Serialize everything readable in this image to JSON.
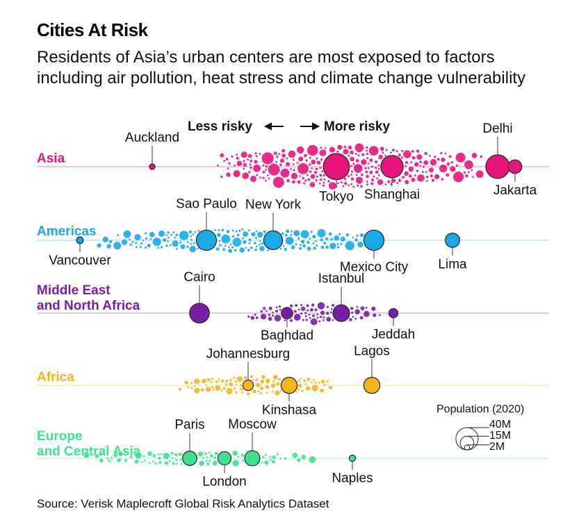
{
  "title": "Cities At Risk",
  "subtitle": "Residents of Asia’s urban centers are most exposed to factors including air pollution, heat stress and climate change vulnerability",
  "source": "Source: Verisk Maplecroft Global Risk Analytics Dataset",
  "chart_data": {
    "type": "scatter",
    "variant": "beeswarm",
    "x_direction_labels": {
      "left": "Less risky",
      "right": "More risky"
    },
    "x_scale": "relative risk (unlabeled)",
    "size_encoding": "Population (2020)",
    "size_legend": {
      "title": "Population (2020)",
      "values": [
        "40M",
        "15M",
        "2M"
      ]
    },
    "rows": [
      {
        "name_lines": [
          "Asia"
        ],
        "color": "#e5157d",
        "annotations": [
          {
            "label": "Auckland",
            "x": 219,
            "pop": 1.7,
            "label_pos": "above"
          },
          {
            "label": "Tokyo",
            "x": 484,
            "pop": 37,
            "label_pos": "below"
          },
          {
            "label": "Shanghai",
            "x": 564,
            "pop": 27,
            "label_pos": "below"
          },
          {
            "label": "Delhi",
            "x": 716,
            "pop": 30,
            "label_pos": "above"
          },
          {
            "label": "Jakarta",
            "x": 741,
            "pop": 10,
            "label_pos": "below"
          }
        ]
      },
      {
        "name_lines": [
          "Americas"
        ],
        "color": "#1aa8e6",
        "annotations": [
          {
            "label": "Vancouver",
            "x": 115,
            "pop": 2.5,
            "label_pos": "below"
          },
          {
            "label": "Sao Paulo",
            "x": 297,
            "pop": 22,
            "label_pos": "above"
          },
          {
            "label": "New York",
            "x": 393,
            "pop": 19,
            "label_pos": "above"
          },
          {
            "label": "Mexico City",
            "x": 538,
            "pop": 22,
            "label_pos": "below"
          },
          {
            "label": "Lima",
            "x": 651,
            "pop": 11,
            "label_pos": "below"
          }
        ]
      },
      {
        "name_lines": [
          "Middle East",
          "and North Africa"
        ],
        "color": "#7a1ea8",
        "annotations": [
          {
            "label": "Cairo",
            "x": 287,
            "pop": 21,
            "label_pos": "above"
          },
          {
            "label": "Baghdad",
            "x": 413,
            "pop": 7,
            "label_pos": "below"
          },
          {
            "label": "Istanbul",
            "x": 491,
            "pop": 15,
            "label_pos": "above"
          },
          {
            "label": "Jeddah",
            "x": 566,
            "pop": 4.5,
            "label_pos": "below"
          }
        ]
      },
      {
        "name_lines": [
          "Africa"
        ],
        "color": "#f5b41e",
        "annotations": [
          {
            "label": "Johannesburg",
            "x": 357,
            "pop": 6,
            "label_pos": "above"
          },
          {
            "label": "Kinshasa",
            "x": 416,
            "pop": 14,
            "label_pos": "below"
          },
          {
            "label": "Lagos",
            "x": 535,
            "pop": 14,
            "label_pos": "above"
          }
        ]
      },
      {
        "name_lines": [
          "Europe",
          "and Central Asia"
        ],
        "color": "#3ee28e",
        "annotations": [
          {
            "label": "Paris",
            "x": 273,
            "pop": 11,
            "label_pos": "above"
          },
          {
            "label": "London",
            "x": 323,
            "pop": 9.5,
            "label_pos": "below"
          },
          {
            "label": "Moscow",
            "x": 363,
            "pop": 12.5,
            "label_pos": "above"
          },
          {
            "label": "Naples",
            "x": 507,
            "pop": 2.2,
            "label_pos": "below"
          }
        ]
      }
    ]
  }
}
